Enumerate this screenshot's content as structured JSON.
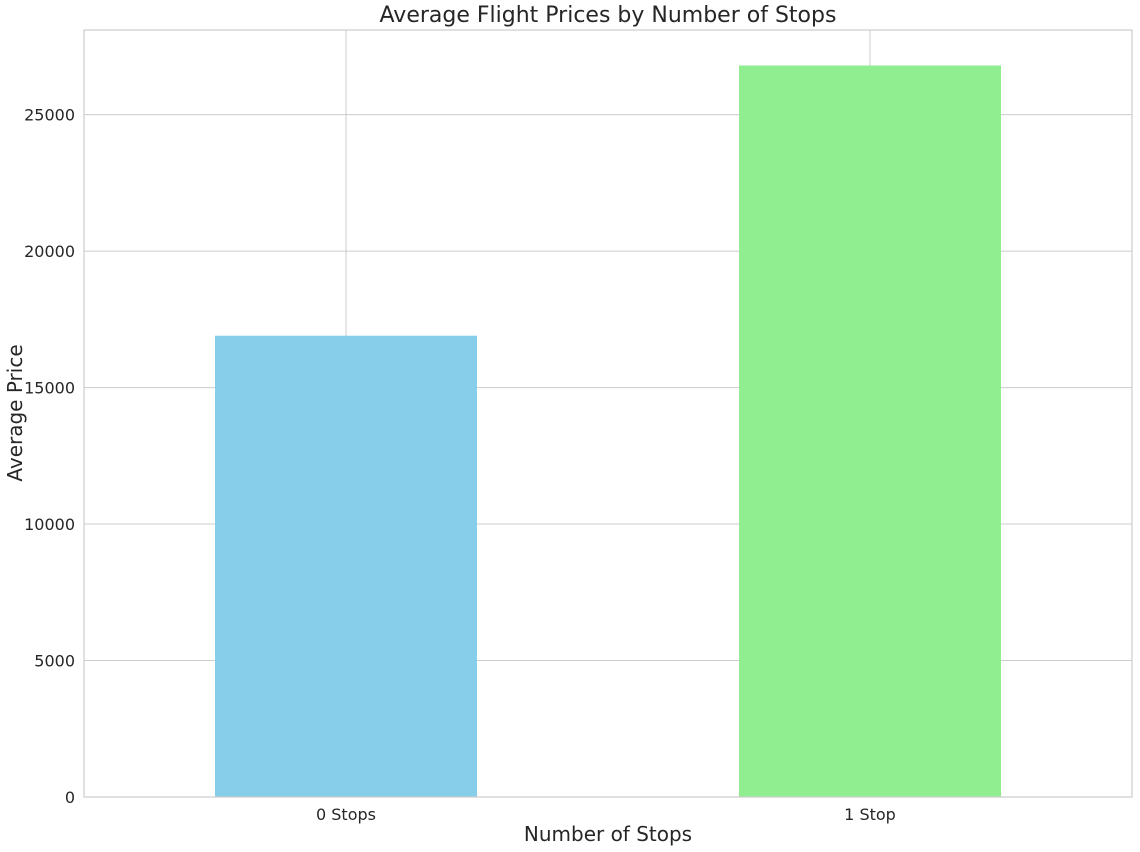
{
  "chart_data": {
    "type": "bar",
    "title": "Average Flight Prices by Number of Stops",
    "xlabel": "Number of Stops",
    "ylabel": "Average Price",
    "categories": [
      "0 Stops",
      "1 Stop"
    ],
    "values": [
      16900,
      26800
    ],
    "colors": [
      "#87CEEB",
      "#90EE90"
    ],
    "ylim": [
      0,
      28100
    ],
    "yticks": [
      0,
      5000,
      10000,
      15000,
      20000,
      25000
    ],
    "grid": true,
    "legend": "none"
  }
}
